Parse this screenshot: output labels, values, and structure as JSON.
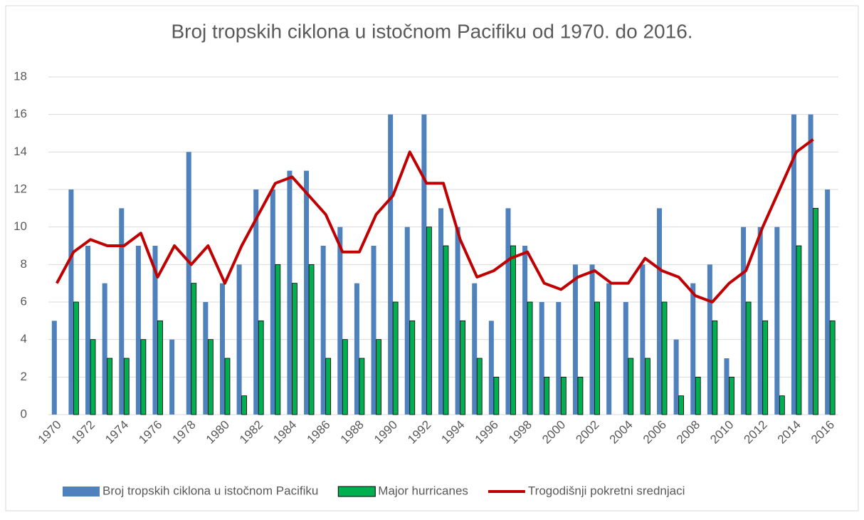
{
  "chart_data": {
    "type": "bar_line",
    "title": "Broj tropskih ciklona u istočnom Pacifiku od 1970. do 2016.",
    "categories": [
      "1970",
      null,
      "1972",
      null,
      "1974",
      null,
      "1976",
      null,
      "1978",
      null,
      "1980",
      null,
      "1982",
      null,
      "1984",
      null,
      "1986",
      null,
      "1988",
      null,
      "1990",
      null,
      "1992",
      null,
      "1994",
      null,
      "1996",
      null,
      "1998",
      null,
      "2000",
      null,
      "2002",
      null,
      "2004",
      null,
      "2006",
      null,
      "2008",
      null,
      "2010",
      null,
      "2012",
      null,
      "2014",
      null,
      "2016"
    ],
    "series": [
      {
        "name": "Broj tropskih ciklona u istočnom Pacifiku",
        "type": "bar",
        "color": "#4f81bd",
        "values": [
          5,
          12,
          9,
          7,
          11,
          9,
          9,
          4,
          14,
          6,
          7,
          8,
          12,
          12,
          13,
          13,
          9,
          10,
          7,
          9,
          16,
          10,
          16,
          11,
          10,
          7,
          5,
          11,
          9,
          6,
          6,
          8,
          8,
          7,
          6,
          8,
          11,
          4,
          7,
          8,
          3,
          10,
          10,
          10,
          16,
          16,
          12
        ]
      },
      {
        "name": "Major hurricanes",
        "type": "bar",
        "color": "#00b050",
        "values": [
          0,
          6,
          4,
          3,
          3,
          4,
          5,
          0,
          7,
          4,
          3,
          1,
          5,
          8,
          7,
          8,
          3,
          4,
          3,
          4,
          6,
          5,
          10,
          9,
          5,
          3,
          2,
          9,
          6,
          2,
          2,
          2,
          6,
          0,
          3,
          3,
          6,
          1,
          2,
          5,
          2,
          6,
          5,
          1,
          9,
          11,
          5
        ]
      },
      {
        "name": "Trogodišnji pokretni srednjaci",
        "type": "line",
        "color": "#c00000",
        "values": [
          7,
          8.67,
          9.33,
          9,
          9,
          9.67,
          7.33,
          9,
          8,
          9,
          7,
          9,
          10.67,
          12.33,
          12.67,
          11.67,
          10.67,
          8.67,
          8.67,
          10.67,
          11.67,
          14,
          12.33,
          12.33,
          9.33,
          7.33,
          7.67,
          8.33,
          8.67,
          7,
          6.67,
          7.33,
          7.67,
          7,
          7,
          8.33,
          7.67,
          7.33,
          6.33,
          6,
          7,
          7.67,
          10,
          12,
          14,
          14.67,
          null
        ]
      }
    ],
    "ylim": [
      0,
      18
    ],
    "yticks": [
      0,
      2,
      4,
      6,
      8,
      10,
      12,
      14,
      16,
      18
    ],
    "grid": true,
    "legend": "bottom"
  }
}
